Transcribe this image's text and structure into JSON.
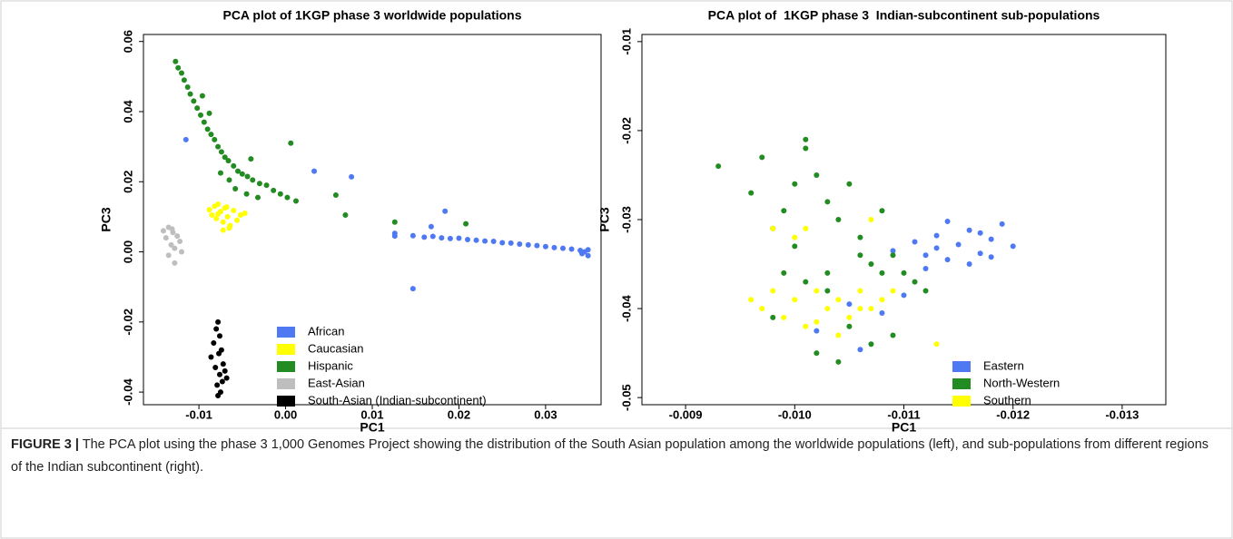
{
  "chart_data": [
    {
      "type": "scatter",
      "title": "PCA plot of 1KGP phase 3 worldwide populations",
      "x_label": "PC1",
      "y_label": "PC3",
      "xlim": [
        -0.0164,
        0.0364
      ],
      "ylim": [
        -0.0436,
        0.062
      ],
      "xticks": [
        -0.01,
        {
          "value": 0,
          "label": "0.00"
        },
        0.01,
        0.02,
        0.03
      ],
      "yticks": [
        -0.04,
        -0.02,
        {
          "value": 0,
          "label": "0.00"
        },
        0.02,
        0.04,
        0.06
      ],
      "legend": "lower center",
      "grid": false,
      "series": [
        {
          "name": "African",
          "color": "#4f79f2",
          "x": [
            0.0126,
            0.0126,
            0.0147,
            0.016,
            0.017,
            0.018,
            0.019,
            0.02,
            0.021,
            0.022,
            0.023,
            0.024,
            0.025,
            0.026,
            0.027,
            0.028,
            0.029,
            0.03,
            0.031,
            0.032,
            0.033,
            0.034,
            0.0345,
            0.0349,
            0.0349,
            0.0342,
            -0.0115,
            0.0033,
            0.0076,
            0.0147,
            0.0184,
            0.0168
          ],
          "y": [
            0.0053,
            0.0045,
            0.0046,
            0.0042,
            0.0044,
            0.004,
            0.0038,
            0.0039,
            0.0035,
            0.0033,
            0.0031,
            0.003,
            0.0026,
            0.0025,
            0.0022,
            0.002,
            0.0018,
            0.0015,
            0.0012,
            0.001,
            0.0008,
            0.0004,
            0,
            -0.0011,
            0.0006,
            -0.0005,
            0.032,
            0.023,
            0.0214,
            -0.0105,
            0.0116,
            0.0072
          ]
        },
        {
          "name": "Caucasian",
          "color": "#ffff00",
          "x": [
            -0.0088,
            -0.0085,
            -0.0082,
            -0.008,
            -0.0078,
            -0.0075,
            -0.0072,
            -0.007,
            -0.0067,
            -0.0064,
            -0.006,
            -0.0056,
            -0.0052,
            -0.0047,
            -0.0078,
            -0.0072,
            -0.0065,
            -0.0068
          ],
          "y": [
            0.012,
            0.0105,
            0.013,
            0.0095,
            0.0136,
            0.0115,
            0.0085,
            0.0125,
            0.01,
            0.0075,
            0.0118,
            0.009,
            0.0105,
            0.011,
            0.0108,
            0.0062,
            0.0068,
            0.0128
          ]
        },
        {
          "name": "Hispanic",
          "color": "#228b22",
          "x": [
            -0.0127,
            -0.0124,
            -0.012,
            -0.0117,
            -0.0113,
            -0.011,
            -0.0106,
            -0.0102,
            -0.0098,
            -0.0094,
            -0.009,
            -0.0086,
            -0.0082,
            -0.0078,
            -0.0074,
            -0.007,
            -0.0066,
            -0.006,
            -0.0055,
            -0.005,
            -0.0044,
            -0.0038,
            -0.003,
            -0.0022,
            -0.0014,
            -0.0006,
            0.0002,
            0.0012,
            -0.0065,
            -0.0058,
            -0.0045,
            -0.0032,
            -0.0075,
            0.0006,
            0.0058,
            0.0069,
            0.0126,
            0.0208,
            -0.0096,
            -0.0088,
            -0.004
          ],
          "y": [
            0.0543,
            0.0525,
            0.051,
            0.049,
            0.047,
            0.045,
            0.043,
            0.041,
            0.039,
            0.037,
            0.035,
            0.0335,
            0.032,
            0.03,
            0.0285,
            0.027,
            0.026,
            0.0245,
            0.023,
            0.0222,
            0.0215,
            0.0205,
            0.0195,
            0.019,
            0.0175,
            0.0165,
            0.0155,
            0.0145,
            0.0205,
            0.018,
            0.0165,
            0.0155,
            0.0225,
            0.031,
            0.0162,
            0.0105,
            0.0085,
            0.008,
            0.0445,
            0.0395,
            0.0265
          ]
        },
        {
          "name": "East-Asian",
          "color": "#bebebe",
          "x": [
            -0.0141,
            -0.0138,
            -0.0135,
            -0.0132,
            -0.013,
            -0.0128,
            -0.0125,
            -0.0122,
            -0.012,
            -0.0135,
            -0.0128,
            -0.0131
          ],
          "y": [
            0.006,
            0.004,
            0.007,
            0.002,
            0.0055,
            0.001,
            0.0045,
            0.003,
            0,
            -0.001,
            -0.0032,
            0.0065
          ]
        },
        {
          "name": "South-Asian (Indian-subcontinent)",
          "color": "#000000",
          "x": [
            -0.0086,
            -0.0083,
            -0.008,
            -0.0078,
            -0.0076,
            -0.0074,
            -0.0072,
            -0.007,
            -0.0068,
            -0.0079,
            -0.0075,
            -0.0081,
            -0.0077,
            -0.0073,
            -0.0078,
            -0.0076
          ],
          "y": [
            -0.03,
            -0.026,
            -0.022,
            -0.02,
            -0.024,
            -0.028,
            -0.032,
            -0.034,
            -0.036,
            -0.038,
            -0.04,
            -0.033,
            -0.029,
            -0.037,
            -0.041,
            -0.035
          ]
        }
      ]
    },
    {
      "type": "scatter",
      "title": "PCA plot of  1KGP phase 3  Indian-subcontinent sub-populations",
      "x_label": "PC1",
      "y_label": "PC3",
      "xlim": [
        -0.0086,
        -0.0134
      ],
      "ylim": [
        -0.0508,
        -0.0092
      ],
      "xticks": [
        -0.009,
        {
          "value": -0.01,
          "label": "-0.010"
        },
        -0.011,
        -0.012,
        -0.013
      ],
      "yticks": [
        -0.05,
        -0.04,
        -0.03,
        -0.02,
        -0.01
      ],
      "legend": "lower right",
      "grid": false,
      "series": [
        {
          "name": "Eastern",
          "color": "#4f79f2",
          "x": [
            -0.0109,
            -0.0111,
            -0.0112,
            -0.0113,
            -0.0114,
            -0.0115,
            -0.0116,
            -0.0117,
            -0.0118,
            -0.0119,
            -0.012,
            -0.0112,
            -0.0114,
            -0.0116,
            -0.0118,
            -0.0113,
            -0.0117,
            -0.0102,
            -0.0105,
            -0.0108,
            -0.011,
            -0.0106
          ],
          "y": [
            -0.0335,
            -0.0325,
            -0.034,
            -0.0318,
            -0.0345,
            -0.0328,
            -0.0312,
            -0.0338,
            -0.0322,
            -0.0305,
            -0.033,
            -0.0355,
            -0.0302,
            -0.035,
            -0.0342,
            -0.0332,
            -0.0315,
            -0.0425,
            -0.0395,
            -0.0405,
            -0.0385,
            -0.0446
          ]
        },
        {
          "name": "North-Western",
          "color": "#228b22",
          "x": [
            -0.0093,
            -0.0096,
            -0.0097,
            -0.0098,
            -0.0099,
            -0.01,
            -0.0101,
            -0.0102,
            -0.0103,
            -0.0104,
            -0.0105,
            -0.0106,
            -0.0107,
            -0.0108,
            -0.0109,
            -0.011,
            -0.0111,
            -0.0112,
            -0.0099,
            -0.0101,
            -0.0103,
            -0.0105,
            -0.0107,
            -0.0104,
            -0.0102,
            -0.0106,
            -0.0108,
            -0.01,
            -0.0098,
            -0.0103,
            -0.0109,
            -0.0101
          ],
          "y": [
            -0.024,
            -0.027,
            -0.023,
            -0.031,
            -0.029,
            -0.026,
            -0.021,
            -0.025,
            -0.028,
            -0.03,
            -0.026,
            -0.032,
            -0.035,
            -0.029,
            -0.034,
            -0.036,
            -0.037,
            -0.038,
            -0.036,
            -0.037,
            -0.036,
            -0.042,
            -0.044,
            -0.046,
            -0.045,
            -0.034,
            -0.036,
            -0.033,
            -0.041,
            -0.038,
            -0.043,
            -0.022
          ]
        },
        {
          "name": "Southern",
          "color": "#ffff00",
          "x": [
            -0.0096,
            -0.0097,
            -0.0098,
            -0.0099,
            -0.01,
            -0.0101,
            -0.0102,
            -0.0103,
            -0.0104,
            -0.0105,
            -0.0106,
            -0.0107,
            -0.0108,
            -0.0109,
            -0.0098,
            -0.01,
            -0.0102,
            -0.0104,
            -0.0106,
            -0.0101,
            -0.0107,
            -0.0113
          ],
          "y": [
            -0.039,
            -0.04,
            -0.038,
            -0.041,
            -0.039,
            -0.042,
            -0.038,
            -0.04,
            -0.039,
            -0.041,
            -0.038,
            -0.04,
            -0.039,
            -0.038,
            -0.031,
            -0.032,
            -0.0415,
            -0.043,
            -0.04,
            -0.031,
            -0.03,
            -0.044
          ]
        }
      ]
    }
  ],
  "caption": {
    "label": "FIGURE 3 |",
    "text": "The PCA plot using the phase 3 1,000 Genomes Project showing the distribution of the South Asian population among the worldwide populations (left), and sub-populations from different regions of the Indian subcontinent (right)."
  }
}
